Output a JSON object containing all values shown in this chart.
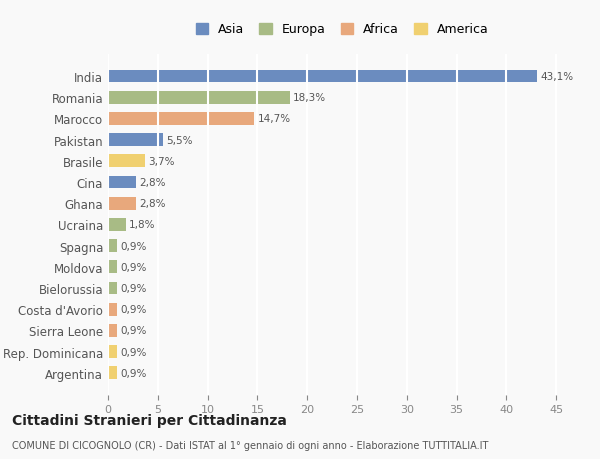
{
  "countries": [
    "India",
    "Romania",
    "Marocco",
    "Pakistan",
    "Brasile",
    "Cina",
    "Ghana",
    "Ucraina",
    "Spagna",
    "Moldova",
    "Bielorussia",
    "Costa d'Avorio",
    "Sierra Leone",
    "Rep. Dominicana",
    "Argentina"
  ],
  "values": [
    43.1,
    18.3,
    14.7,
    5.5,
    3.7,
    2.8,
    2.8,
    1.8,
    0.9,
    0.9,
    0.9,
    0.9,
    0.9,
    0.9,
    0.9
  ],
  "labels": [
    "43,1%",
    "18,3%",
    "14,7%",
    "5,5%",
    "3,7%",
    "2,8%",
    "2,8%",
    "1,8%",
    "0,9%",
    "0,9%",
    "0,9%",
    "0,9%",
    "0,9%",
    "0,9%",
    "0,9%"
  ],
  "continents": [
    "Asia",
    "Europa",
    "Africa",
    "Asia",
    "America",
    "Asia",
    "Africa",
    "Europa",
    "Europa",
    "Europa",
    "Europa",
    "Africa",
    "Africa",
    "America",
    "America"
  ],
  "colors": {
    "Asia": "#6b8cbf",
    "Europa": "#a8bb85",
    "Africa": "#e8a87c",
    "America": "#f0d070"
  },
  "legend_order": [
    "Asia",
    "Europa",
    "Africa",
    "America"
  ],
  "xlim": [
    0,
    47
  ],
  "xticks": [
    0,
    5,
    10,
    15,
    20,
    25,
    30,
    35,
    40,
    45
  ],
  "title": "Cittadini Stranieri per Cittadinanza",
  "subtitle": "COMUNE DI CICOGNOLO (CR) - Dati ISTAT al 1° gennaio di ogni anno - Elaborazione TUTTITALIA.IT",
  "bg_color": "#f9f9f9",
  "grid_color": "#ffffff",
  "bar_height": 0.6
}
